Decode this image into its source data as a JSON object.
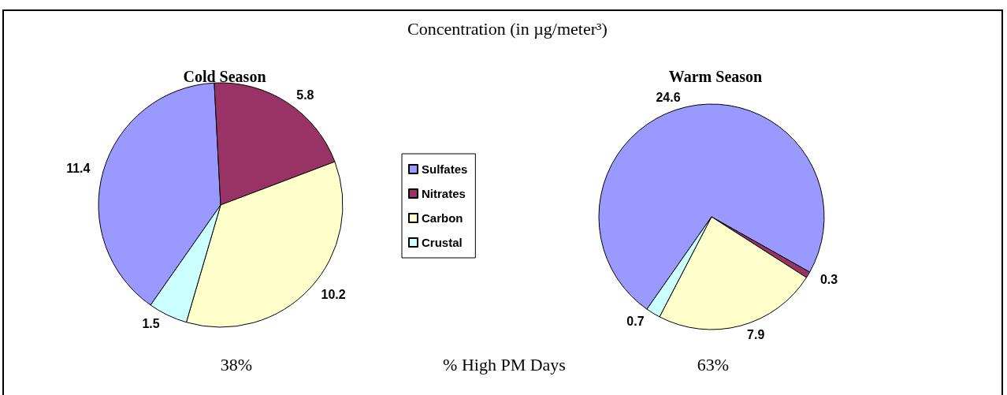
{
  "chart_data": {
    "type": "pie",
    "title": "Concentration (in µg/meter³)",
    "categories": [
      "Sulfates",
      "Nitrates",
      "Carbon",
      "Crustal"
    ],
    "colors": [
      "#9999ff",
      "#993366",
      "#ffffcc",
      "#ccffff"
    ],
    "data_labels": true,
    "legend": "right",
    "series": [
      {
        "name": "Cold Season",
        "values": [
          11.4,
          5.8,
          10.2,
          1.5
        ]
      },
      {
        "name": "Warm Season",
        "values": [
          24.6,
          0.3,
          7.9,
          0.7
        ]
      }
    ],
    "annotations": [
      "38%",
      "% High PM Days",
      "63%"
    ]
  }
}
